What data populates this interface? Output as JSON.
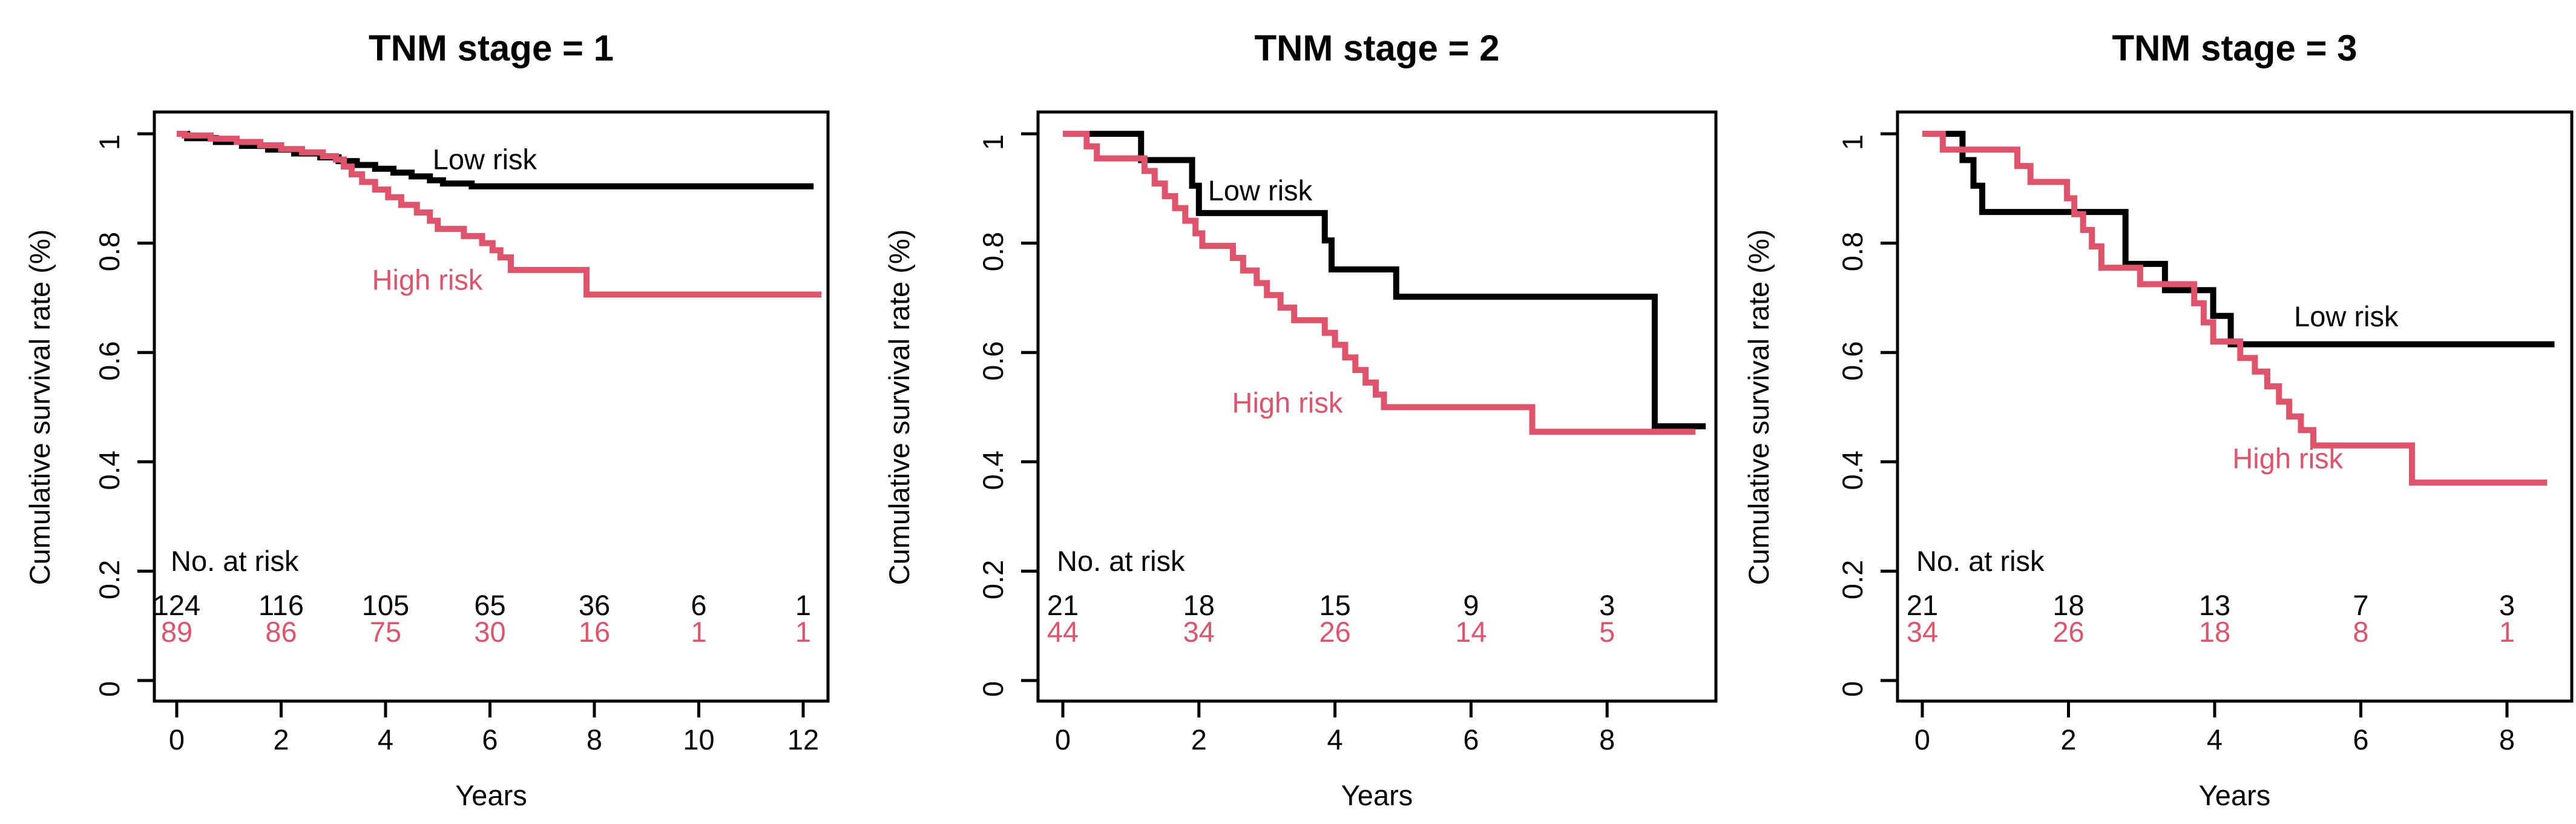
{
  "figure_description": "Three Kaplan-Meier cumulative survival step plots by TNM stage, each comparing Low risk (black) and High risk (pink) groups, with number-at-risk tables",
  "colors": {
    "low_risk": "#000000",
    "high_risk": "#DF536B",
    "background": "#ffffff"
  },
  "chart_data": [
    {
      "type": "line",
      "subtype": "kaplan-meier-step",
      "title": "TNM stage = 1",
      "xlabel": "Years",
      "ylabel": "Cumulative survival rate (%)",
      "xticks": [
        0,
        2,
        4,
        6,
        8,
        10,
        12
      ],
      "yticks": [
        0.0,
        0.2,
        0.4,
        0.6,
        0.8,
        1.0
      ],
      "xlim": [
        -0.43,
        12.48
      ],
      "ylim": [
        -0.04,
        1.04
      ],
      "grid": false,
      "legend_position": "inline-labels",
      "series": [
        {
          "name": "Low risk",
          "color": "#000000",
          "label_xy": [
            5.9,
            0.935
          ],
          "end_x": 12.2,
          "points": [
            [
              0,
              1.0
            ],
            [
              0.2,
              0.992
            ],
            [
              0.75,
              0.985
            ],
            [
              1.25,
              0.978
            ],
            [
              1.75,
              0.971
            ],
            [
              2.25,
              0.964
            ],
            [
              2.75,
              0.957
            ],
            [
              3.1,
              0.95
            ],
            [
              3.45,
              0.943
            ],
            [
              3.8,
              0.936
            ],
            [
              4.15,
              0.929
            ],
            [
              4.5,
              0.922
            ],
            [
              4.85,
              0.915
            ],
            [
              5.1,
              0.909
            ],
            [
              5.65,
              0.904
            ]
          ]
        },
        {
          "name": "High risk",
          "color": "#DF536B",
          "label_xy": [
            4.8,
            0.715
          ],
          "end_x": 12.35,
          "points": [
            [
              0,
              1.0
            ],
            [
              0.15,
              0.997
            ],
            [
              0.65,
              0.991
            ],
            [
              1.15,
              0.985
            ],
            [
              1.6,
              0.979
            ],
            [
              2.0,
              0.972
            ],
            [
              2.4,
              0.966
            ],
            [
              2.8,
              0.959
            ],
            [
              3.05,
              0.953
            ],
            [
              3.2,
              0.94
            ],
            [
              3.35,
              0.926
            ],
            [
              3.55,
              0.912
            ],
            [
              3.8,
              0.898
            ],
            [
              4.05,
              0.884
            ],
            [
              4.3,
              0.87
            ],
            [
              4.6,
              0.856
            ],
            [
              4.85,
              0.841
            ],
            [
              5.0,
              0.826
            ],
            [
              5.5,
              0.813
            ],
            [
              5.85,
              0.8
            ],
            [
              6.05,
              0.787
            ],
            [
              6.2,
              0.774
            ],
            [
              6.4,
              0.751
            ],
            [
              7.85,
              0.706
            ]
          ]
        }
      ],
      "risk_table": {
        "header": "No. at risk",
        "time_points": [
          0,
          2,
          4,
          6,
          8,
          10,
          12
        ],
        "rows": [
          {
            "name": "Low risk",
            "color": "#000000",
            "values": [
              "124",
              "116",
              "105",
              "65",
              "36",
              "6",
              "1"
            ]
          },
          {
            "name": "High risk",
            "color": "#DF536B",
            "values": [
              "89",
              "86",
              "75",
              "30",
              "16",
              "1",
              "1"
            ]
          }
        ]
      }
    },
    {
      "type": "line",
      "subtype": "kaplan-meier-step",
      "title": "TNM stage = 2",
      "xlabel": "Years",
      "ylabel": "Cumulative survival rate (%)",
      "xticks": [
        0,
        2,
        4,
        6,
        8
      ],
      "yticks": [
        0.0,
        0.2,
        0.4,
        0.6,
        0.8,
        1.0
      ],
      "xlim": [
        -0.37,
        9.6
      ],
      "ylim": [
        -0.04,
        1.04
      ],
      "grid": false,
      "legend_position": "inline-labels",
      "series": [
        {
          "name": "Low risk",
          "color": "#000000",
          "label_xy": [
            2.9,
            0.878
          ],
          "end_x": 9.45,
          "points": [
            [
              0,
              1.0
            ],
            [
              1.15,
              0.952
            ],
            [
              1.9,
              0.905
            ],
            [
              2.0,
              0.855
            ],
            [
              3.85,
              0.805
            ],
            [
              3.95,
              0.752
            ],
            [
              4.9,
              0.702
            ],
            [
              8.7,
              0.465
            ]
          ]
        },
        {
          "name": "High risk",
          "color": "#DF536B",
          "label_xy": [
            3.3,
            0.49
          ],
          "end_x": 9.3,
          "points": [
            [
              0,
              1.0
            ],
            [
              0.35,
              0.977
            ],
            [
              0.5,
              0.955
            ],
            [
              1.2,
              0.932
            ],
            [
              1.35,
              0.909
            ],
            [
              1.5,
              0.886
            ],
            [
              1.65,
              0.864
            ],
            [
              1.8,
              0.841
            ],
            [
              1.95,
              0.818
            ],
            [
              2.05,
              0.795
            ],
            [
              2.5,
              0.773
            ],
            [
              2.65,
              0.75
            ],
            [
              2.85,
              0.727
            ],
            [
              3.0,
              0.705
            ],
            [
              3.2,
              0.682
            ],
            [
              3.4,
              0.659
            ],
            [
              3.85,
              0.636
            ],
            [
              4.0,
              0.614
            ],
            [
              4.15,
              0.591
            ],
            [
              4.3,
              0.568
            ],
            [
              4.45,
              0.545
            ],
            [
              4.6,
              0.523
            ],
            [
              4.72,
              0.5
            ],
            [
              6.9,
              0.455
            ]
          ]
        }
      ],
      "risk_table": {
        "header": "No. at risk",
        "time_points": [
          0,
          2,
          4,
          6,
          8
        ],
        "rows": [
          {
            "name": "Low risk",
            "color": "#000000",
            "values": [
              "21",
              "18",
              "15",
              "9",
              "3"
            ]
          },
          {
            "name": "High risk",
            "color": "#DF536B",
            "values": [
              "44",
              "34",
              "26",
              "14",
              "5"
            ]
          }
        ]
      }
    },
    {
      "type": "line",
      "subtype": "kaplan-meier-step",
      "title": "TNM stage = 3",
      "xlabel": "Years",
      "ylabel": "Cumulative survival rate (%)",
      "xticks": [
        0,
        2,
        4,
        6,
        8
      ],
      "yticks": [
        0.0,
        0.2,
        0.4,
        0.6,
        0.8,
        1.0
      ],
      "xlim": [
        -0.35,
        8.9
      ],
      "ylim": [
        -0.04,
        1.04
      ],
      "grid": false,
      "legend_position": "inline-labels",
      "series": [
        {
          "name": "Low risk",
          "color": "#000000",
          "label_xy": [
            5.8,
            0.648
          ],
          "end_x": 8.65,
          "points": [
            [
              0,
              1.0
            ],
            [
              0.55,
              0.952
            ],
            [
              0.7,
              0.905
            ],
            [
              0.82,
              0.857
            ],
            [
              2.78,
              0.762
            ],
            [
              3.32,
              0.714
            ],
            [
              3.98,
              0.667
            ],
            [
              4.22,
              0.615
            ]
          ]
        },
        {
          "name": "High risk",
          "color": "#DF536B",
          "label_xy": [
            5.0,
            0.388
          ],
          "end_x": 8.55,
          "points": [
            [
              0,
              1.0
            ],
            [
              0.28,
              0.971
            ],
            [
              1.3,
              0.941
            ],
            [
              1.48,
              0.912
            ],
            [
              1.98,
              0.882
            ],
            [
              2.08,
              0.853
            ],
            [
              2.2,
              0.824
            ],
            [
              2.32,
              0.794
            ],
            [
              2.45,
              0.755
            ],
            [
              2.98,
              0.725
            ],
            [
              3.72,
              0.69
            ],
            [
              3.85,
              0.655
            ],
            [
              3.98,
              0.62
            ],
            [
              4.35,
              0.59
            ],
            [
              4.55,
              0.565
            ],
            [
              4.72,
              0.538
            ],
            [
              4.88,
              0.51
            ],
            [
              5.02,
              0.483
            ],
            [
              5.18,
              0.458
            ],
            [
              5.35,
              0.43
            ],
            [
              6.7,
              0.362
            ]
          ]
        }
      ],
      "risk_table": {
        "header": "No. at risk",
        "time_points": [
          0,
          2,
          4,
          6,
          8
        ],
        "rows": [
          {
            "name": "Low risk",
            "color": "#000000",
            "values": [
              "21",
              "18",
              "13",
              "7",
              "3"
            ]
          },
          {
            "name": "High risk",
            "color": "#DF536B",
            "values": [
              "34",
              "26",
              "18",
              "8",
              "1"
            ]
          }
        ]
      }
    }
  ]
}
